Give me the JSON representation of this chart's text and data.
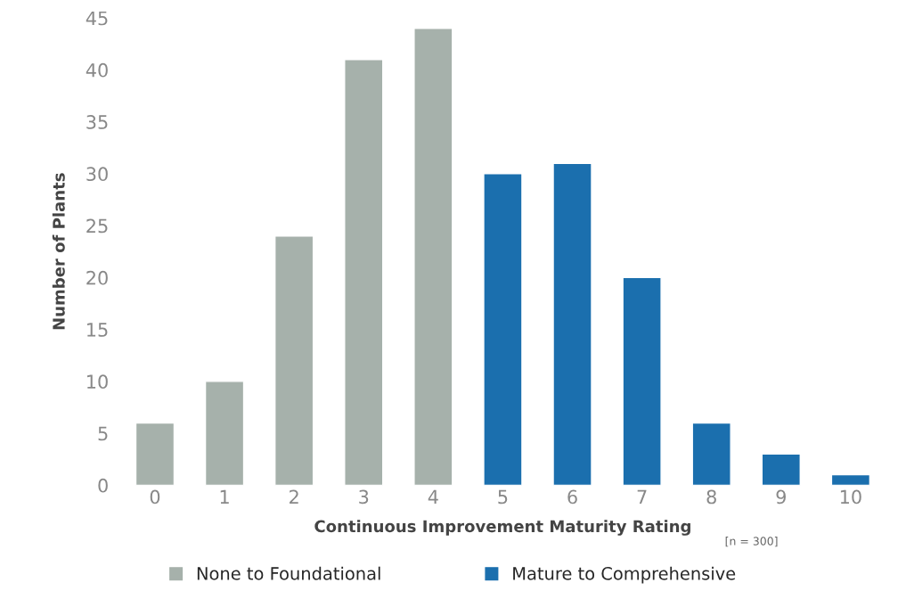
{
  "chart_data": {
    "type": "bar",
    "xlabel": "Continuous Improvement Maturity Rating",
    "ylabel": "Number of Plants",
    "annotations": [
      "[n = 300]"
    ],
    "categories": [
      "0",
      "1",
      "2",
      "3",
      "4",
      "5",
      "6",
      "7",
      "8",
      "9",
      "10"
    ],
    "series": [
      {
        "name": "None to Foundational",
        "color": "#a6b1ab",
        "values": [
          6,
          10,
          24,
          41,
          44,
          null,
          null,
          null,
          null,
          null,
          null
        ]
      },
      {
        "name": "Mature to Comprehensive",
        "color": "#1b6fae",
        "values": [
          null,
          null,
          null,
          null,
          null,
          30,
          31,
          20,
          6,
          3,
          1
        ]
      }
    ],
    "ylim": [
      0,
      45
    ],
    "yticks": [
      0,
      5,
      10,
      15,
      20,
      25,
      30,
      35,
      40,
      45
    ],
    "grid": false,
    "legend": "bottom"
  }
}
